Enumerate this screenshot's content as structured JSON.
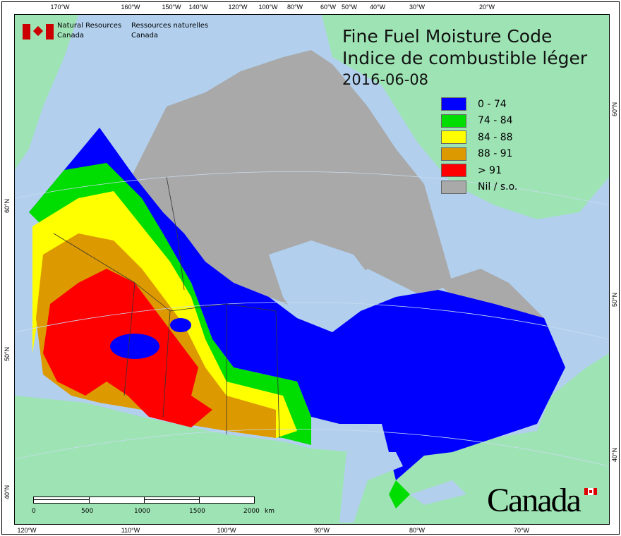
{
  "header": {
    "org_en": [
      "Natural Resources",
      "Canada"
    ],
    "org_fr": [
      "Ressources naturelles",
      "Canada"
    ]
  },
  "title": {
    "line1": "Fine Fuel Moisture Code",
    "line2": "Indice de combustible léger",
    "date": "2016-06-08"
  },
  "legend": [
    {
      "label": "0 - 74",
      "color": "#0000ff"
    },
    {
      "label": "74 - 84",
      "color": "#00dd00"
    },
    {
      "label": "84 - 88",
      "color": "#ffff00"
    },
    {
      "label": "88 - 91",
      "color": "#dd9900"
    },
    {
      "label": "> 91",
      "color": "#ff0000"
    },
    {
      "label": "Nil / s.o.",
      "color": "#a9a9a9"
    }
  ],
  "top_ticks": [
    "170°W",
    "160°W",
    "150°W",
    "140°W",
    "120°W",
    "100°W",
    "80°W",
    "60°W",
    "50°W",
    "40°W",
    "30°W",
    "20°W"
  ],
  "bottom_ticks": [
    "120°W",
    "110°W",
    "100°W",
    "90°W",
    "80°W",
    "70°W"
  ],
  "left_ticks": [
    "60°N",
    "50°N",
    "40°N"
  ],
  "right_ticks": [
    "60°N",
    "50°N",
    "40°N"
  ],
  "scale": {
    "labels": [
      "0",
      "500",
      "1000",
      "1500",
      "2000"
    ],
    "unit": "km"
  },
  "wordmark": "Canada",
  "colors": {
    "ocean": "#b2d0ee",
    "foreign_land": "#9ee3b4",
    "nil": "#a9a9a9"
  }
}
